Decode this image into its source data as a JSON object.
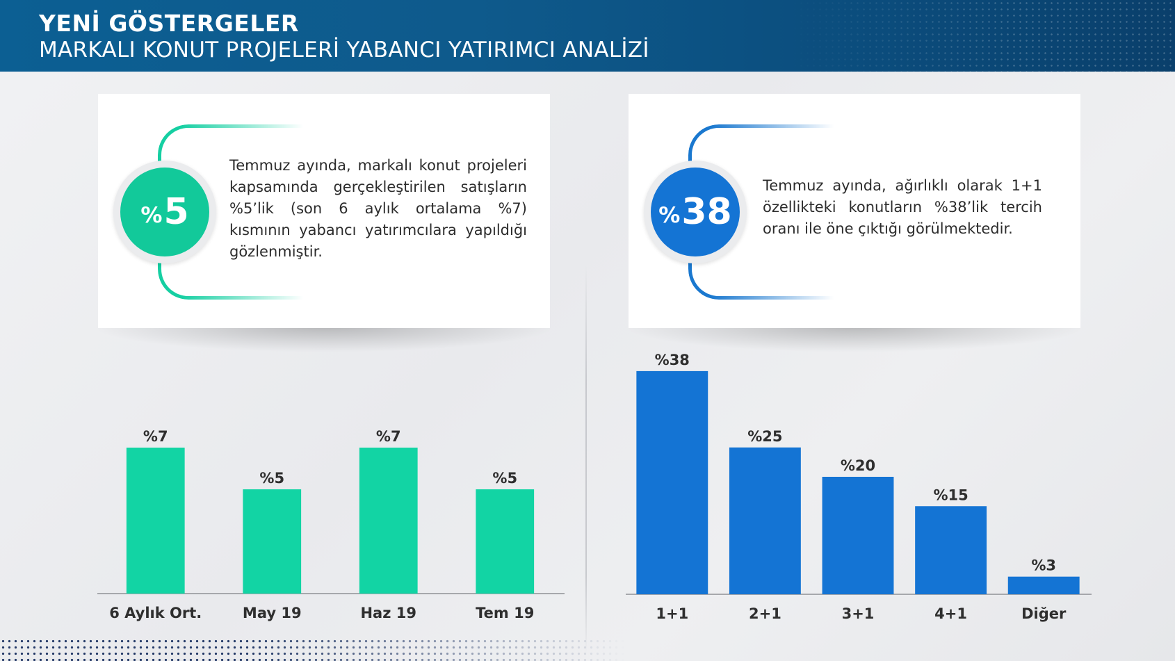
{
  "header": {
    "title": "YENİ GÖSTERGELER",
    "subtitle": "MARKALI KONUT PROJELERİ YABANCI YATIRIMCI ANALİZİ"
  },
  "cards": [
    {
      "pct_sign": "%",
      "value": "5",
      "text": "Temmuz ayında, markalı konut projeleri kapsamında gerçekleştirilen satışların %5’lik (son 6 aylık ortalama %7) kısmının yabancı yatırımcılara yapıldığı gözlenmiştir."
    },
    {
      "pct_sign": "%",
      "value": "38",
      "text": "Temmuz ayında, ağırlıklı olarak 1+1 özellikteki konutların %38’lik tercih oranı ile öne çıktığı görülmektedir."
    }
  ],
  "colors": {
    "teal": "#12c99a",
    "blue": "#1474d4",
    "header": "#0e5a8c"
  },
  "chart_data": [
    {
      "type": "bar",
      "categories": [
        "6 Aylık Ort.",
        "May 19",
        "Haz 19",
        "Tem 19"
      ],
      "values": [
        7,
        5,
        7,
        5
      ],
      "data_labels": [
        "%7",
        "%5",
        "%7",
        "%5"
      ],
      "ylim": [
        0,
        13
      ],
      "color": "#12d4a4",
      "grid": false
    },
    {
      "type": "bar",
      "categories": [
        "1+1",
        "2+1",
        "3+1",
        "4+1",
        "Diğer"
      ],
      "values": [
        38,
        25,
        20,
        15,
        3
      ],
      "data_labels": [
        "%38",
        "%25",
        "%20",
        "%15",
        "%3"
      ],
      "ylim": [
        0,
        40
      ],
      "color": "#1474d4",
      "grid": false
    }
  ]
}
